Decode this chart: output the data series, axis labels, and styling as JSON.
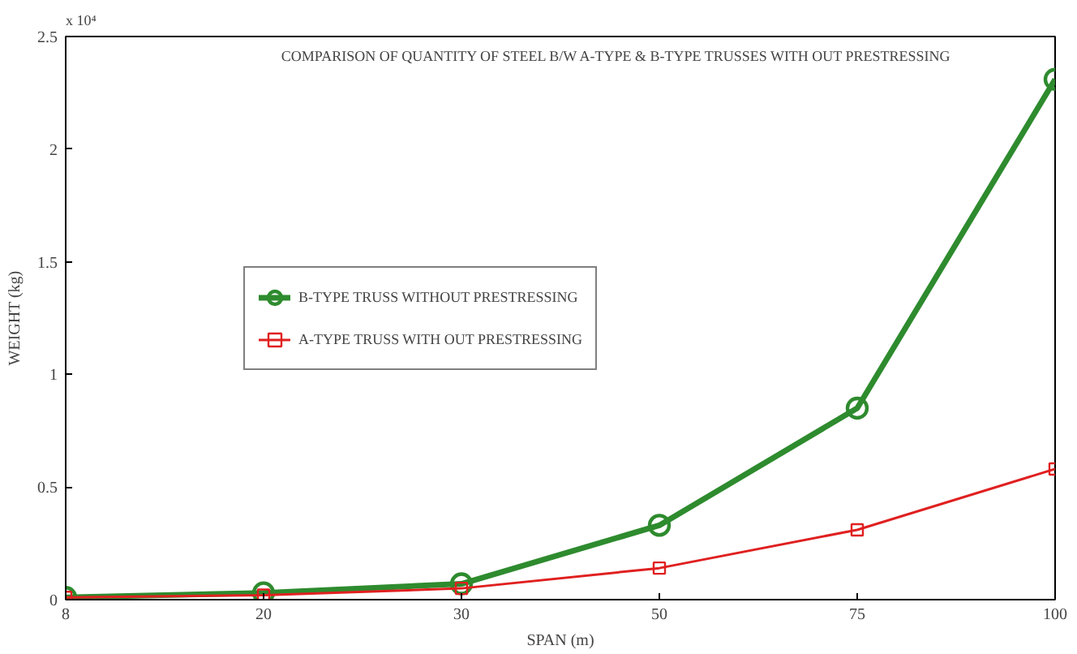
{
  "chart_data": {
    "type": "line",
    "title": "COMPARISON OF QUANTITY OF STEEL B/W A-TYPE & B-TYPE TRUSSES WITH OUT PRESTRESSING",
    "xlabel": "SPAN (m)",
    "ylabel": "WEIGHT (kg)",
    "annotations": [
      "x 10⁴"
    ],
    "categories": [
      "8",
      "20",
      "30",
      "50",
      "75",
      "100"
    ],
    "series": [
      {
        "name": "B-TYPE TRUSS WITHOUT PRESTRESSING",
        "color": "#2e8b2e",
        "marker": "circle",
        "values": [
          0.01,
          0.03,
          0.07,
          0.33,
          0.85,
          2.31
        ]
      },
      {
        "name": "A-TYPE TRUSS WITH OUT PRESTRESSING",
        "color": "#e02020",
        "marker": "square",
        "values": [
          0.01,
          0.02,
          0.05,
          0.14,
          0.31,
          0.58
        ]
      }
    ],
    "ylim": [
      0,
      2.5
    ],
    "yticks": [
      0,
      0.5,
      1,
      1.5,
      2,
      2.5
    ],
    "grid": false,
    "legend": "center left",
    "line_style": "solid"
  }
}
